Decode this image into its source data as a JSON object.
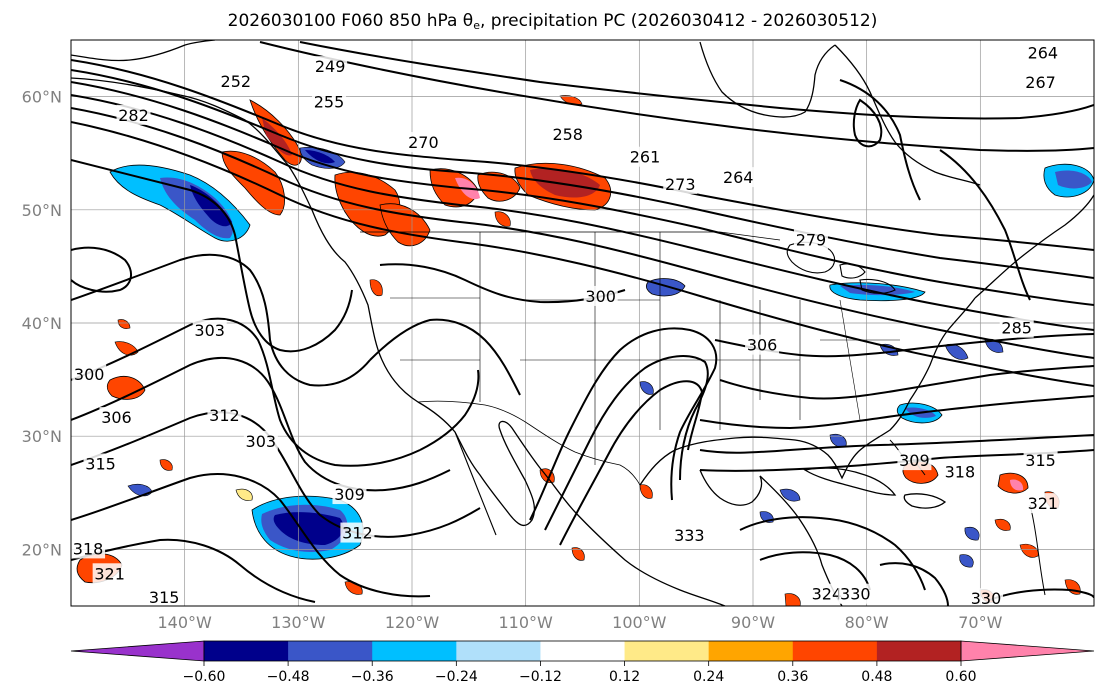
{
  "title": {
    "main": "2026030100 F060 850 hPa θ",
    "sub": "e",
    "rest": ", precipitation PC (2026030412 - 2026030512)"
  },
  "axes": {
    "lat_labels": [
      "60°N",
      "50°N",
      "40°N",
      "30°N",
      "20°N"
    ],
    "lon_labels": [
      "140°W",
      "130°W",
      "120°W",
      "110°W",
      "100°W",
      "90°W",
      "80°W",
      "70°W"
    ],
    "lat_values": [
      60,
      50,
      40,
      30,
      20
    ],
    "lon_values": [
      -140,
      -130,
      -120,
      -110,
      -100,
      -90,
      -80,
      -70
    ],
    "lat_range": [
      15,
      65
    ],
    "lon_range": [
      -150,
      -60
    ],
    "grid": true
  },
  "colorbar": {
    "tick_labels": [
      "−0.60",
      "−0.48",
      "−0.36",
      "−0.24",
      "−0.12",
      "0.12",
      "0.24",
      "0.36",
      "0.48",
      "0.60"
    ],
    "colors": [
      "#9932cc",
      "#00008b",
      "#3a56c8",
      "#00bfff",
      "#b0e0fa",
      "#ffffff",
      "#ffea88",
      "#ffa500",
      "#ff4500",
      "#b22222",
      "#ff82ab"
    ],
    "extend": "both"
  },
  "contour_labels": [
    {
      "text": "252",
      "lon": -135.5,
      "lat": 61.3
    },
    {
      "text": "249",
      "lon": -127.2,
      "lat": 62.6
    },
    {
      "text": "255",
      "lon": -127.3,
      "lat": 59.5
    },
    {
      "text": "282",
      "lon": -144.5,
      "lat": 58.3
    },
    {
      "text": "270",
      "lon": -119.0,
      "lat": 55.9
    },
    {
      "text": "258",
      "lon": -106.3,
      "lat": 56.6
    },
    {
      "text": "261",
      "lon": -99.5,
      "lat": 54.6
    },
    {
      "text": "264",
      "lon": -91.3,
      "lat": 52.8
    },
    {
      "text": "279",
      "lon": -84.9,
      "lat": 47.3
    },
    {
      "text": "267",
      "lon": -64.7,
      "lat": 61.2
    },
    {
      "text": "264",
      "lon": -64.5,
      "lat": 63.8
    },
    {
      "text": "300",
      "lon": -103.4,
      "lat": 42.3
    },
    {
      "text": "303",
      "lon": -137.8,
      "lat": 39.3
    },
    {
      "text": "300",
      "lon": -148.4,
      "lat": 35.4
    },
    {
      "text": "306",
      "lon": -146.0,
      "lat": 31.6
    },
    {
      "text": "312",
      "lon": -136.5,
      "lat": 31.8
    },
    {
      "text": "303",
      "lon": -133.3,
      "lat": 29.5
    },
    {
      "text": "315",
      "lon": -147.4,
      "lat": 27.5
    },
    {
      "text": "309",
      "lon": -125.5,
      "lat": 24.8
    },
    {
      "text": "312",
      "lon": -124.8,
      "lat": 21.4
    },
    {
      "text": "318",
      "lon": -148.5,
      "lat": 20.0
    },
    {
      "text": "321",
      "lon": -146.6,
      "lat": 17.8
    },
    {
      "text": "315",
      "lon": -141.8,
      "lat": 15.7
    },
    {
      "text": "306",
      "lon": -89.2,
      "lat": 38.0
    },
    {
      "text": "309",
      "lon": -75.8,
      "lat": 27.8
    },
    {
      "text": "318",
      "lon": -71.8,
      "lat": 26.8
    },
    {
      "text": "315",
      "lon": -64.7,
      "lat": 27.8
    },
    {
      "text": "321",
      "lon": -64.5,
      "lat": 24.0
    },
    {
      "text": "333",
      "lon": -95.6,
      "lat": 21.2
    },
    {
      "text": "324",
      "lon": -83.5,
      "lat": 16.0
    },
    {
      "text": "330",
      "lon": -81.0,
      "lat": 16.0
    },
    {
      "text": "330",
      "lon": -69.5,
      "lat": 15.6
    },
    {
      "text": "273",
      "lon": -96.4,
      "lat": 52.2
    },
    {
      "text": "285",
      "lon": -66.8,
      "lat": 39.5
    }
  ]
}
